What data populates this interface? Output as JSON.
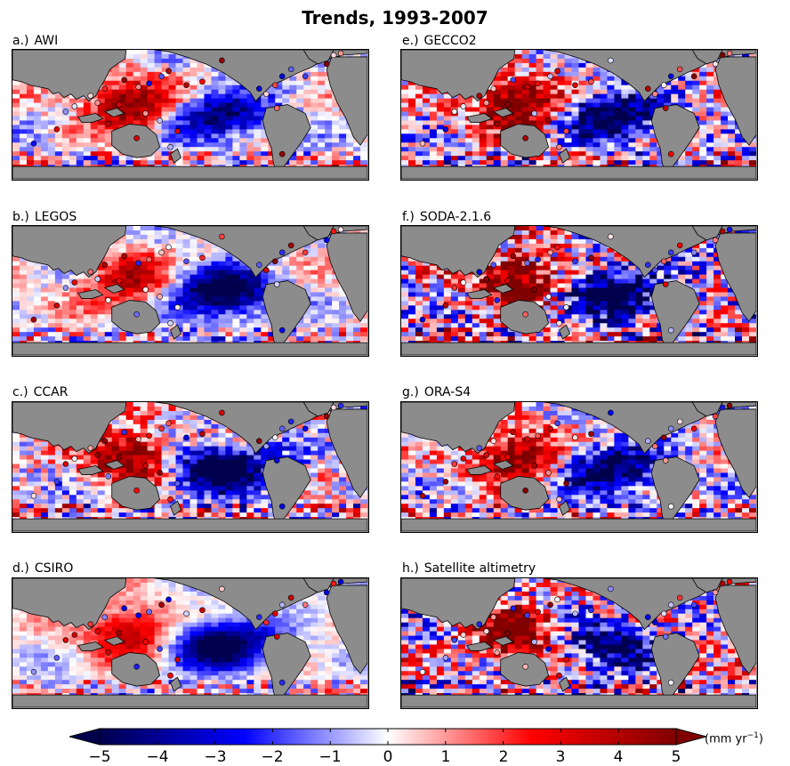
{
  "chart_data": {
    "type": "heatmap",
    "title": "Trends, 1993-2007",
    "panels": [
      {
        "letter": "a.)",
        "name": "AWI"
      },
      {
        "letter": "e.)",
        "name": "GECCO2"
      },
      {
        "letter": "b.)",
        "name": "LEGOS"
      },
      {
        "letter": "f.)",
        "name": "SODA-2.1.6"
      },
      {
        "letter": "c.)",
        "name": "CCAR"
      },
      {
        "letter": "g.)",
        "name": "ORA-S4"
      },
      {
        "letter": "d.)",
        "name": "CSIRO"
      },
      {
        "letter": "h.)",
        "name": "Satellite altimetry"
      }
    ],
    "colorbar": {
      "min": -5,
      "max": 5,
      "ticks": [
        "−5",
        "−4",
        "−3",
        "−2",
        "−1",
        "0",
        "1",
        "2",
        "3",
        "4",
        "5"
      ],
      "units": "(mm yr",
      "units_exp": "−1",
      "units_close": ")",
      "colormap": "seismic",
      "extend": "both"
    },
    "land_color": "#8c8c8c",
    "low_color": "#00004c",
    "high_color": "#800000"
  }
}
